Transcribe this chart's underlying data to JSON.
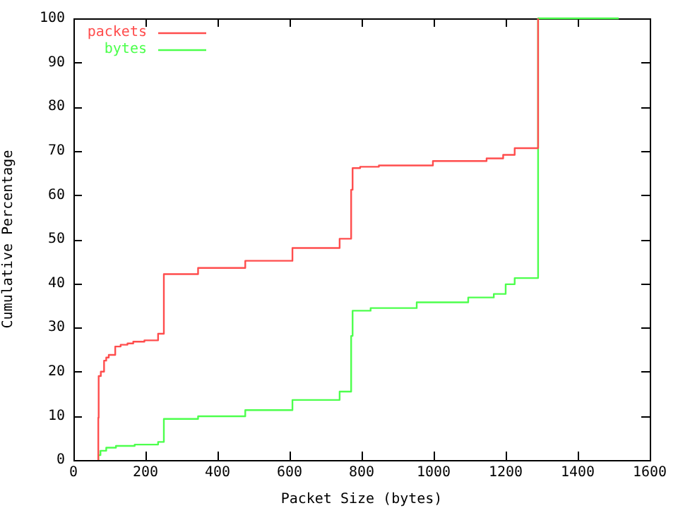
{
  "chart_data": {
    "type": "step",
    "xlabel": "Packet Size (bytes)",
    "ylabel": "Cumulative Percentage",
    "xlim": [
      0,
      1600
    ],
    "xticks": [
      0,
      200,
      400,
      600,
      800,
      1000,
      1200,
      1400,
      1600
    ],
    "ylim": [
      0,
      100
    ],
    "yticks": [
      0,
      10,
      20,
      30,
      40,
      50,
      60,
      70,
      80,
      90,
      100
    ],
    "grid": false,
    "legend": "top left",
    "series": [
      {
        "name": "packets",
        "color": "#ff4d4d",
        "x": [
          69,
          69,
          70,
          76,
          85,
          91,
          98,
          116,
          131,
          150,
          166,
          197,
          235,
          251,
          346,
          477,
          608,
          739,
          771,
          775,
          796,
          848,
          998,
          1147,
          1193,
          1225,
          1290,
          1290
        ],
        "values": [
          0,
          9.6,
          19,
          20,
          22.5,
          23.2,
          23.8,
          25.7,
          26.1,
          26.4,
          26.8,
          27.1,
          28.6,
          42.1,
          43.5,
          45.1,
          48,
          50.1,
          61.2,
          66.1,
          66.4,
          66.7,
          67.7,
          68.3,
          69.1,
          70.6,
          85.1,
          100
        ]
      },
      {
        "name": "bytes",
        "color": "#4dff4d",
        "x": [
          69,
          69,
          75,
          91,
          118,
          170,
          235,
          251,
          346,
          477,
          608,
          739,
          771,
          775,
          825,
          953,
          1096,
          1167,
          1200,
          1225,
          1290,
          1514
        ],
        "values": [
          0,
          1.1,
          2.1,
          2.8,
          3.2,
          3.5,
          4.1,
          9.3,
          9.9,
          11.3,
          13.6,
          15.5,
          28.1,
          33.8,
          34.4,
          35.7,
          36.8,
          37.6,
          39.8,
          41.2,
          100,
          100
        ]
      }
    ]
  }
}
